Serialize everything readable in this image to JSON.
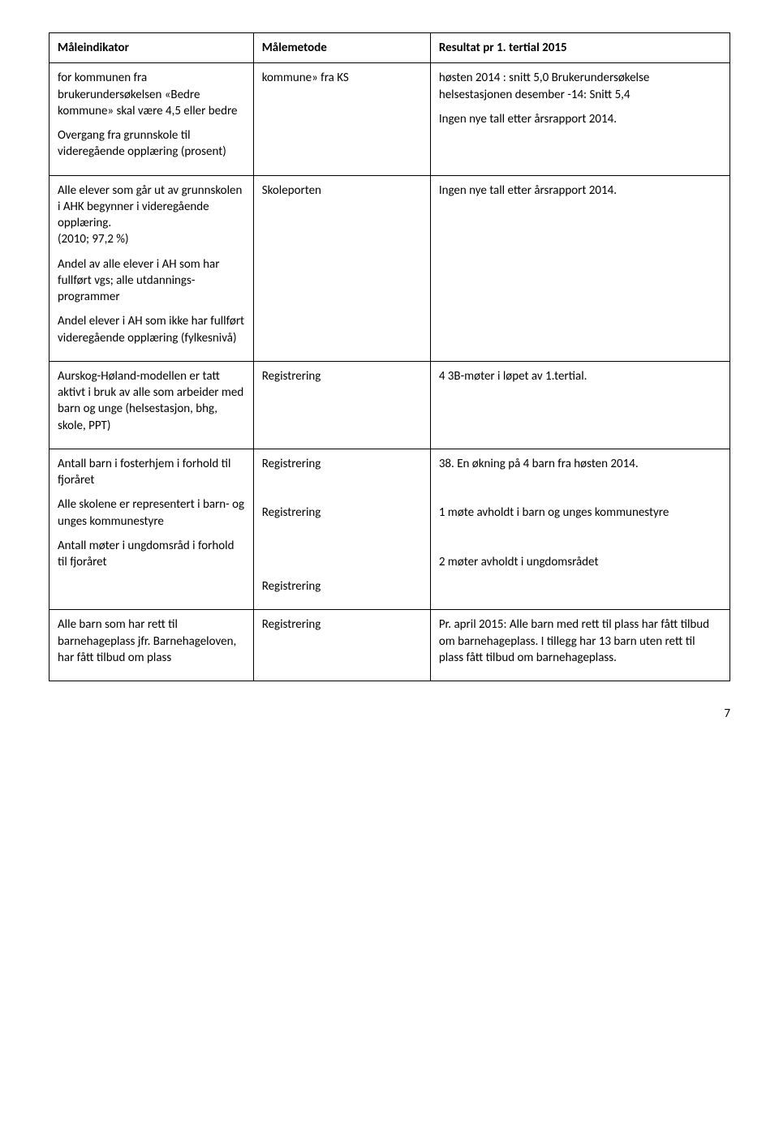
{
  "table": {
    "headers": [
      "Måleindikator",
      "Målemetode",
      "Resultat pr 1. tertial 2015"
    ],
    "rows": [
      {
        "c1_blocks": [
          "for kommunen fra brukerundersøkelsen «Bedre kommune» skal være 4,5 eller bedre",
          "Overgang fra grunnskole til videregående opplæring (prosent)"
        ],
        "c2_blocks": [
          "kommune» fra KS"
        ],
        "c3_blocks": [
          "høsten 2014 : snitt 5,0 Brukerundersøkelse helsestasjonen desember -14: Snitt 5,4",
          "Ingen nye tall etter årsrapport 2014."
        ]
      },
      {
        "c1_blocks": [
          "Alle elever som går ut av grunnskolen i AHK begynner i videregående opplæring.\n(2010; 97,2 %)",
          "Andel av alle elever i AH som har fullført vgs; alle utdannings-programmer",
          "Andel elever i AH som ikke har fullført videregående opplæring (fylkesnivå)"
        ],
        "c2_blocks": [
          "Skoleporten"
        ],
        "c3_blocks": [
          "Ingen nye tall etter årsrapport 2014."
        ]
      },
      {
        "c1_blocks": [
          "Aurskog-Høland-modellen er tatt aktivt i bruk av alle som arbeider med barn og unge (helsestasjon, bhg, skole, PPT)"
        ],
        "c2_blocks": [
          "Registrering"
        ],
        "c3_blocks": [
          "4 3B-møter i løpet av 1.tertial."
        ]
      },
      {
        "c1_blocks": [
          "Antall barn i fosterhjem i forhold til fjoråret",
          "Alle skolene er representert i barn- og unges kommunestyre",
          "Antall møter i ungdomsråd i forhold til fjoråret"
        ],
        "c2_blocks": [
          "Registrering",
          "",
          "Registrering",
          "",
          "",
          "Registrering"
        ],
        "c3_blocks": [
          "38. En økning på 4 barn fra høsten 2014.",
          "",
          "1 møte avholdt i barn og unges kommunestyre",
          "",
          "2 møter avholdt i ungdomsrådet"
        ]
      },
      {
        "c1_blocks": [
          "Alle barn som har rett til barnehageplass jfr. Barnehageloven, har fått tilbud om plass"
        ],
        "c2_blocks": [
          "Registrering"
        ],
        "c3_blocks": [
          "Pr. april 2015: Alle barn med rett til plass har fått tilbud om barnehageplass. I tillegg har 13 barn uten rett til plass fått tilbud om barnehageplass."
        ]
      }
    ]
  },
  "pageNumber": "7"
}
